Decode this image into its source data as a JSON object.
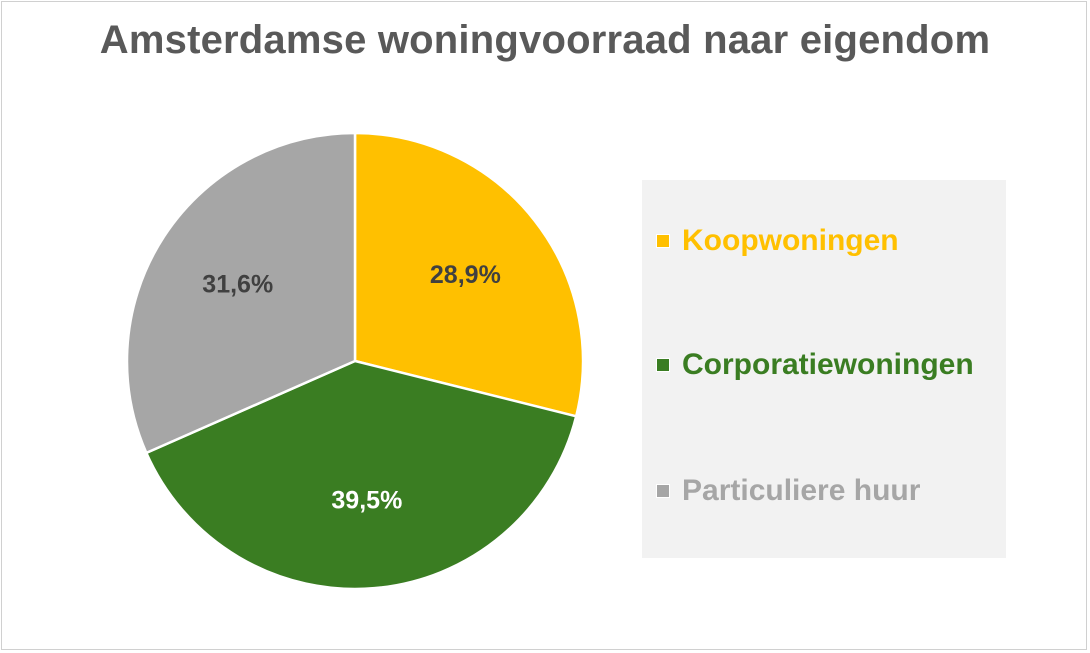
{
  "chart_data": {
    "type": "pie",
    "title": "Amsterdamse woningvoorraad naar eigendom",
    "categories": [
      "Koopwoningen",
      "Corporatiewoningen",
      "Particuliere huur"
    ],
    "values": [
      28.9,
      39.5,
      31.6
    ],
    "labels": [
      "28,9%",
      "39,5%",
      "31,6%"
    ],
    "colors": [
      "#FFC000",
      "#3A7D22",
      "#A6A6A6"
    ],
    "label_colors": [
      "#404040",
      "#FFFFFF",
      "#404040"
    ],
    "legend_position": "right",
    "start_angle": "12 o'clock, clockwise"
  }
}
